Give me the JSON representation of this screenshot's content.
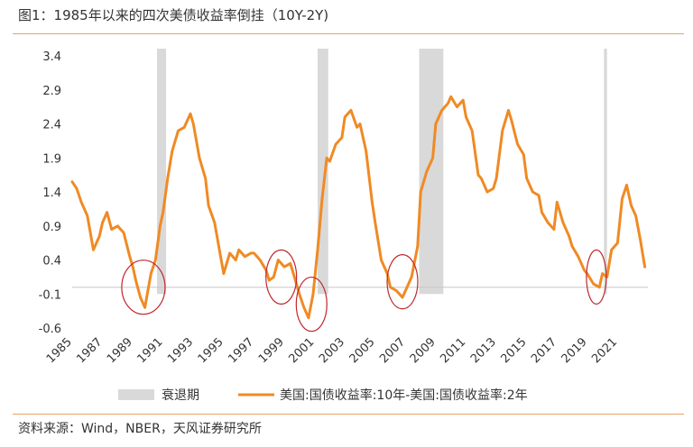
{
  "title": "图1：1985年以来的四次美债收益率倒挂（10Y-2Y)",
  "source": "资料来源：Wind，NBER，天风证券研究所",
  "colors": {
    "line": "#f08a24",
    "recession": "#d9d9d9",
    "circle": "#c0272d",
    "rule": "#e8a266"
  },
  "chart_data": {
    "type": "line",
    "title": "",
    "ylim": [
      -0.6,
      3.4
    ],
    "yticks": [
      3.4,
      2.9,
      2.4,
      1.9,
      1.4,
      0.9,
      0.4,
      -0.1,
      -0.6
    ],
    "ytick_labels": [
      "3.4",
      "2.9",
      "2.4",
      "1.9",
      "1.4",
      "0.9",
      "0.4",
      "-0.1",
      "-0.6"
    ],
    "xlim": [
      1985.0,
      2023.0
    ],
    "xticks": [
      "1985",
      "1987",
      "1989",
      "1991",
      "1993",
      "1995",
      "1997",
      "1999",
      "2001",
      "2003",
      "2005",
      "2007",
      "2009",
      "2011",
      "2013",
      "2015",
      "2017",
      "2019",
      "2021"
    ],
    "zero_line": 0.0,
    "recessions": [
      [
        1990.6,
        1991.2
      ],
      [
        2001.2,
        2001.9
      ],
      [
        2007.9,
        2009.5
      ],
      [
        2020.1,
        2020.3
      ]
    ],
    "inversion_circles": [
      {
        "center": [
          1989.7,
          0.0
        ],
        "label": ""
      },
      {
        "center": [
          1998.8,
          0.15
        ],
        "label": ""
      },
      {
        "center": [
          2000.8,
          -0.25
        ],
        "label": ""
      },
      {
        "center": [
          2006.8,
          0.08
        ],
        "label": ""
      },
      {
        "center": [
          2019.6,
          0.15
        ],
        "label": ""
      }
    ],
    "legend": [
      {
        "type": "band",
        "label": "衰退期"
      },
      {
        "type": "line",
        "label": "美国:国债收益率:10年-美国:国债收益率:2年"
      }
    ],
    "series": [
      {
        "name": "美国:国债收益率:10年-美国:国债收益率:2年",
        "x": [
          1985.0,
          1985.3,
          1985.6,
          1986.0,
          1986.4,
          1986.8,
          1987.0,
          1987.3,
          1987.6,
          1988.0,
          1988.4,
          1988.8,
          1989.0,
          1989.2,
          1989.5,
          1989.8,
          1990.0,
          1990.2,
          1990.5,
          1990.8,
          1991.0,
          1991.3,
          1991.6,
          1992.0,
          1992.4,
          1992.8,
          1993.0,
          1993.4,
          1993.8,
          1994.0,
          1994.4,
          1994.8,
          1995.0,
          1995.4,
          1995.8,
          1996.0,
          1996.4,
          1996.8,
          1997.0,
          1997.4,
          1997.8,
          1998.0,
          1998.3,
          1998.6,
          1999.0,
          1999.4,
          1999.8,
          2000.0,
          2000.3,
          2000.6,
          2000.9,
          2001.2,
          2001.5,
          2001.8,
          2002.0,
          2002.4,
          2002.8,
          2003.0,
          2003.4,
          2003.8,
          2004.0,
          2004.4,
          2004.8,
          2005.0,
          2005.4,
          2005.8,
          2006.0,
          2006.4,
          2006.8,
          2007.0,
          2007.4,
          2007.8,
          2008.0,
          2008.4,
          2008.8,
          2009.0,
          2009.4,
          2009.8,
          2010.0,
          2010.4,
          2010.8,
          2011.0,
          2011.4,
          2011.8,
          2012.0,
          2012.4,
          2012.8,
          2013.0,
          2013.4,
          2013.8,
          2014.0,
          2014.4,
          2014.8,
          2015.0,
          2015.4,
          2015.8,
          2016.0,
          2016.4,
          2016.8,
          2017.0,
          2017.4,
          2017.8,
          2018.0,
          2018.4,
          2018.8,
          2019.0,
          2019.4,
          2019.8,
          2020.0,
          2020.3,
          2020.6,
          2021.0,
          2021.3,
          2021.6,
          2021.9,
          2022.2,
          2022.5,
          2022.8
        ],
        "y": [
          1.55,
          1.45,
          1.25,
          1.05,
          0.55,
          0.75,
          0.95,
          1.1,
          0.85,
          0.9,
          0.8,
          0.45,
          0.3,
          0.1,
          -0.15,
          -0.3,
          -0.05,
          0.2,
          0.4,
          0.9,
          1.1,
          1.6,
          2.0,
          2.3,
          2.35,
          2.55,
          2.4,
          1.9,
          1.6,
          1.2,
          0.95,
          0.45,
          0.2,
          0.5,
          0.4,
          0.55,
          0.45,
          0.5,
          0.5,
          0.4,
          0.25,
          0.1,
          0.15,
          0.4,
          0.3,
          0.35,
          0.05,
          -0.1,
          -0.3,
          -0.45,
          -0.1,
          0.55,
          1.3,
          1.9,
          1.85,
          2.1,
          2.2,
          2.5,
          2.6,
          2.35,
          2.4,
          2.0,
          1.25,
          0.95,
          0.4,
          0.2,
          0.0,
          -0.05,
          -0.15,
          -0.05,
          0.15,
          0.6,
          1.4,
          1.7,
          1.9,
          2.4,
          2.6,
          2.7,
          2.8,
          2.65,
          2.75,
          2.5,
          2.3,
          1.65,
          1.6,
          1.4,
          1.45,
          1.6,
          2.3,
          2.6,
          2.45,
          2.1,
          1.95,
          1.6,
          1.4,
          1.35,
          1.1,
          0.95,
          0.85,
          1.25,
          0.95,
          0.75,
          0.6,
          0.45,
          0.25,
          0.2,
          0.05,
          0.0,
          0.2,
          0.15,
          0.55,
          0.65,
          1.3,
          1.5,
          1.2,
          1.05,
          0.7,
          0.3
        ]
      }
    ]
  }
}
